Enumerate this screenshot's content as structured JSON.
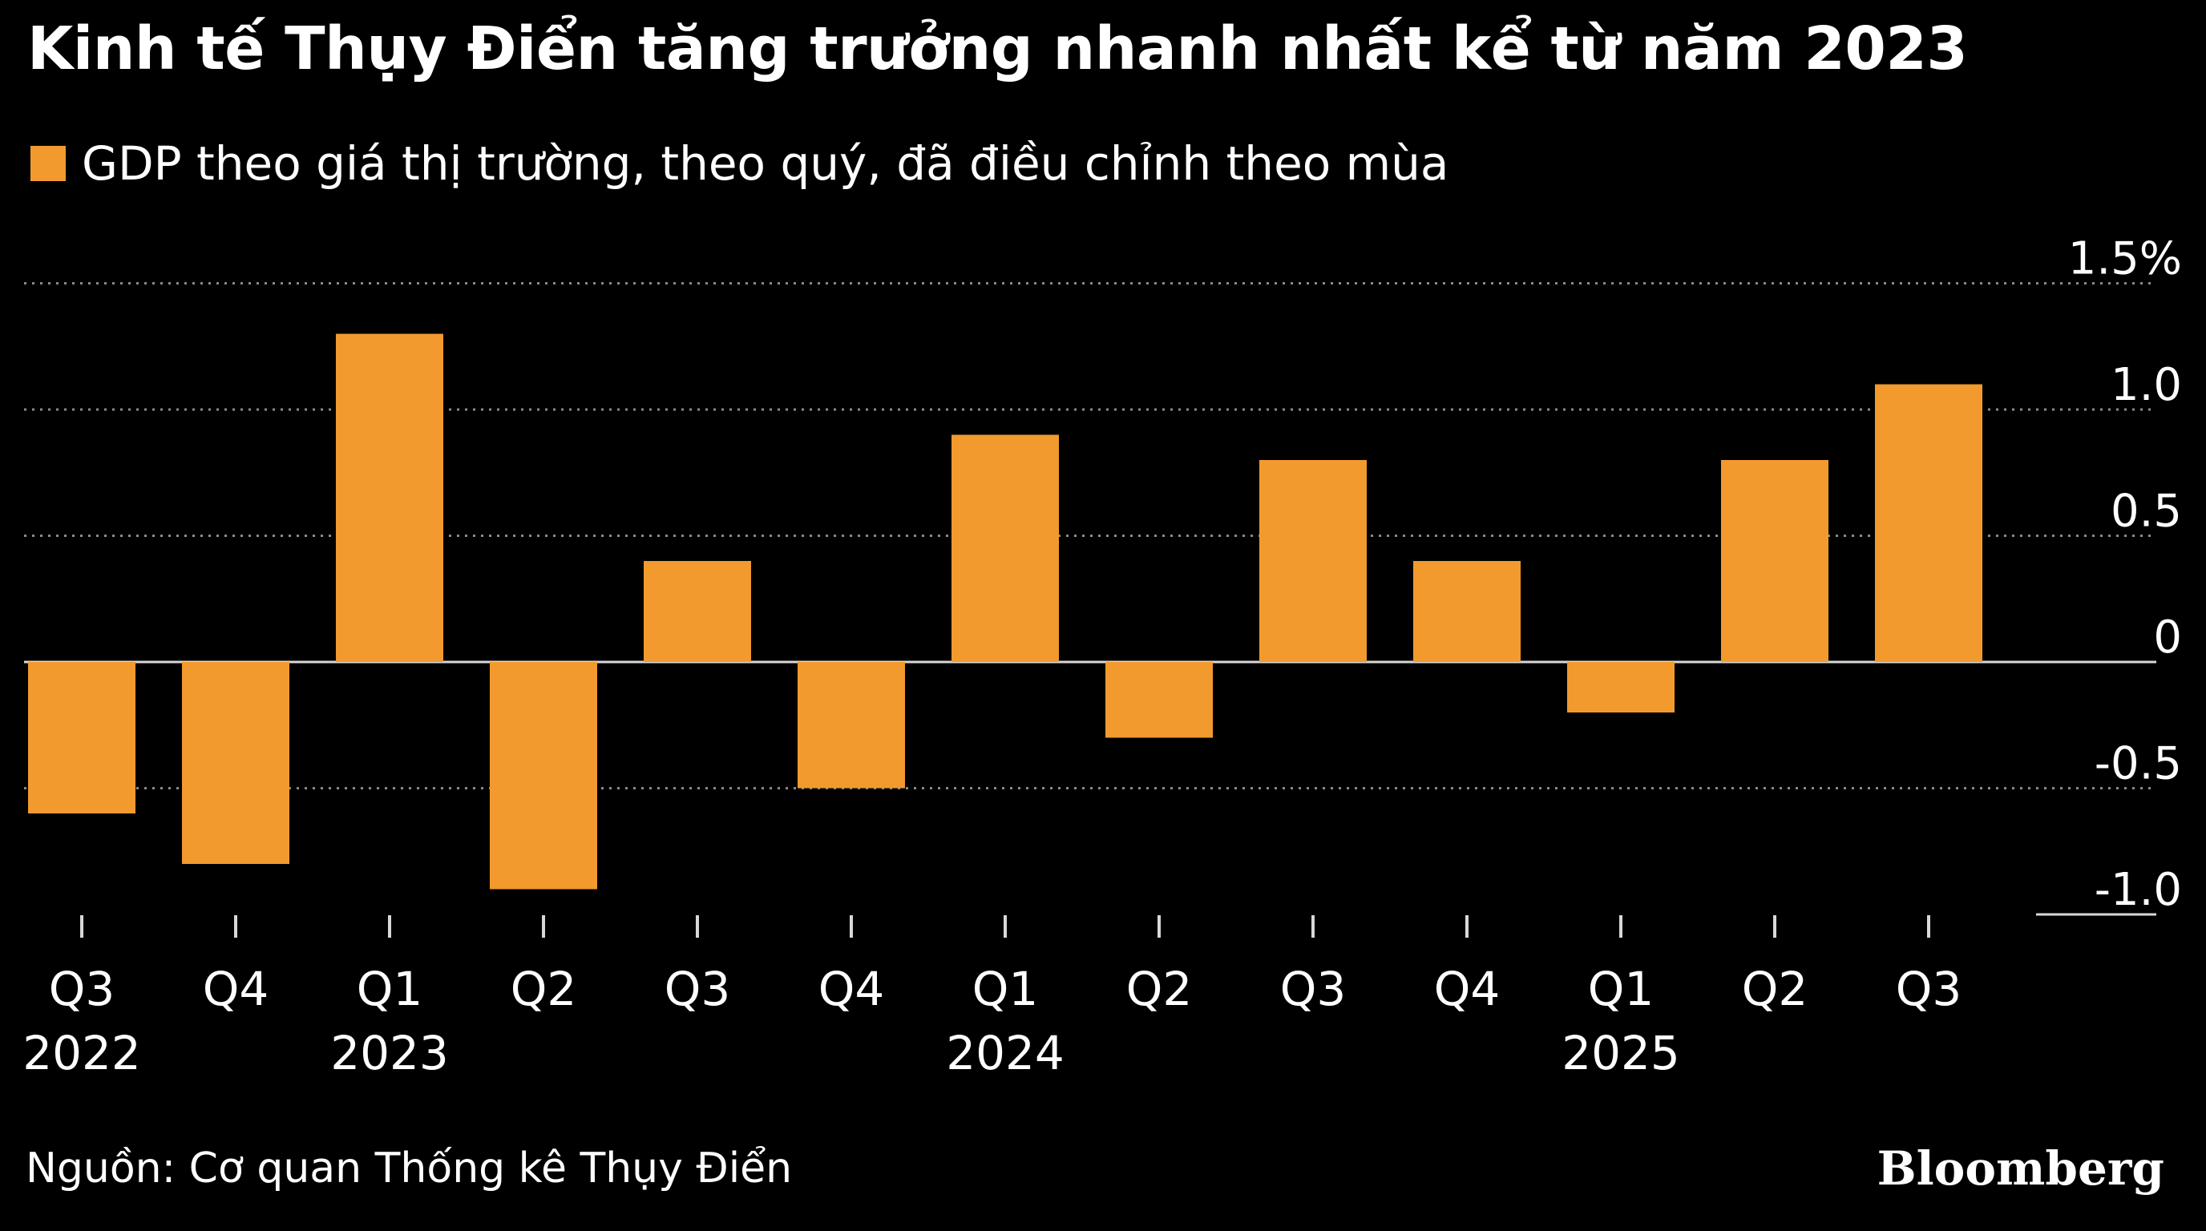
{
  "chart_data": {
    "type": "bar",
    "title": "Kinh tế Thụy Điển tăng trưởng nhanh nhất kể từ năm 2023",
    "legend": [
      {
        "label": "GDP theo giá thị trường, theo quý, đã điều chỉnh theo mùa",
        "color": "#f29a2e"
      }
    ],
    "categories": [
      "Q3",
      "Q4",
      "Q1",
      "Q2",
      "Q3",
      "Q4",
      "Q1",
      "Q2",
      "Q3",
      "Q4",
      "Q1",
      "Q2",
      "Q3"
    ],
    "year_labels": [
      "2022",
      "",
      "2023",
      "",
      "",
      "",
      "2024",
      "",
      "",
      "",
      "2025",
      "",
      ""
    ],
    "series": [
      {
        "name": "GDP theo giá thị trường, theo quý, đã điều chỉnh theo mùa",
        "color": "#f29a2e",
        "values": [
          -0.6,
          -0.8,
          1.3,
          -0.9,
          0.4,
          -0.5,
          0.9,
          -0.3,
          0.8,
          0.4,
          -0.2,
          0.8,
          1.1
        ]
      }
    ],
    "y_axis": {
      "position": "right",
      "ticks": [
        1.5,
        1.0,
        0.5,
        0,
        -0.5,
        -1.0
      ],
      "tick_labels": [
        "1.5%",
        "1.0",
        "0.5",
        "0",
        "-0.5",
        "-1.0"
      ],
      "ylim": [
        -1.0,
        1.5
      ]
    },
    "grid": "dotted",
    "xlabel": "",
    "ylabel": ""
  },
  "source": "Nguồn: Cơ quan Thống kê Thụy Điển",
  "brand": "Bloomberg",
  "colors": {
    "background": "#000000",
    "bar": "#f29a2e",
    "grid": "#8a8a8a",
    "text": "#ffffff"
  }
}
